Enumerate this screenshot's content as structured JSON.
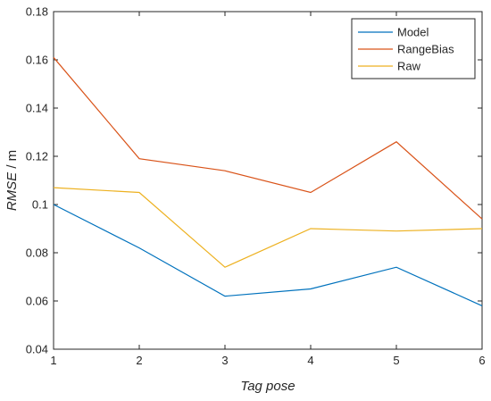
{
  "chart_data": {
    "type": "line",
    "title": "",
    "xlabel": "Tag pose",
    "ylabel_italic": "RMSE",
    "ylabel_unit": " / m",
    "x": [
      1,
      2,
      3,
      4,
      5,
      6
    ],
    "xlim": [
      1,
      6
    ],
    "ylim": [
      0.04,
      0.18
    ],
    "x_ticks": [
      "1",
      "2",
      "3",
      "4",
      "5",
      "6"
    ],
    "y_ticks": [
      "0.04",
      "0.06",
      "0.08",
      "0.1",
      "0.12",
      "0.14",
      "0.16",
      "0.18"
    ],
    "grid": false,
    "legend_position": "top-right",
    "series": [
      {
        "name": "Model",
        "color": "#0072BD",
        "values": [
          0.1,
          0.082,
          0.062,
          0.065,
          0.074,
          0.058
        ]
      },
      {
        "name": "RangeBias",
        "color": "#D95319",
        "values": [
          0.161,
          0.119,
          0.114,
          0.105,
          0.126,
          0.094
        ]
      },
      {
        "name": "Raw",
        "color": "#EDB120",
        "values": [
          0.107,
          0.105,
          0.074,
          0.09,
          0.089,
          0.09
        ]
      }
    ]
  }
}
